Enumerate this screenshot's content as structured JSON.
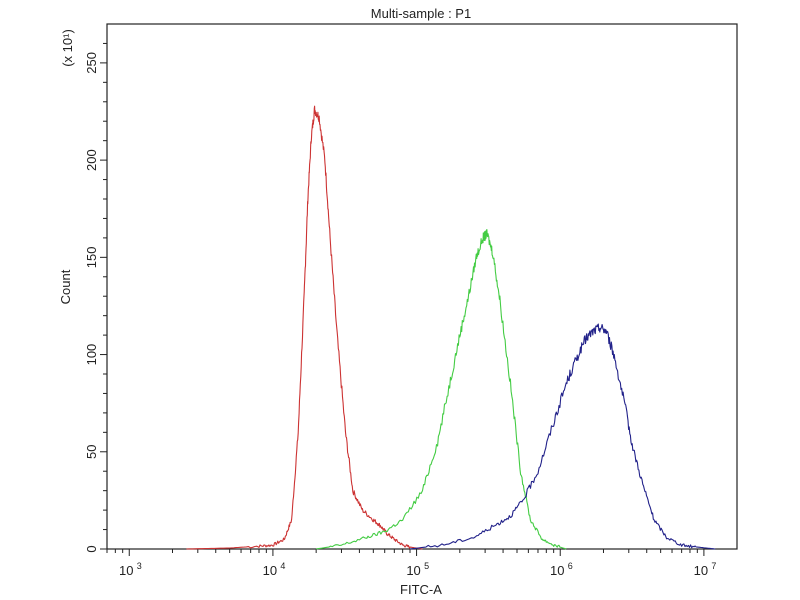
{
  "chart_data": {
    "type": "line",
    "title": "Multi-sample : P1",
    "xlabel": "FITC-A",
    "ylabel": "Count",
    "y_multiplier_label": "(x 10¹)",
    "x_scale": "log",
    "xlim": [
      700,
      17000000
    ],
    "ylim": [
      0,
      270
    ],
    "x_ticks": [
      {
        "value": 1000,
        "base": "10",
        "exp": "3"
      },
      {
        "value": 10000,
        "base": "10",
        "exp": "4"
      },
      {
        "value": 100000,
        "base": "10",
        "exp": "5"
      },
      {
        "value": 1000000,
        "base": "10",
        "exp": "6"
      },
      {
        "value": 10000000,
        "base": "10",
        "exp": "7"
      }
    ],
    "y_ticks": [
      {
        "value": 0,
        "label": "0"
      },
      {
        "value": 50,
        "label": "50"
      },
      {
        "value": 100,
        "label": "100"
      },
      {
        "value": 150,
        "label": "150"
      },
      {
        "value": 200,
        "label": "200"
      },
      {
        "value": 250,
        "label": "250"
      }
    ],
    "grid": false,
    "legend": "none",
    "series": [
      {
        "color": "#cc3333",
        "points": [
          [
            2500,
            0
          ],
          [
            5000,
            0.5
          ],
          [
            8000,
            1.5
          ],
          [
            10000,
            2
          ],
          [
            12000,
            5
          ],
          [
            13500,
            15
          ],
          [
            15000,
            60
          ],
          [
            16500,
            130
          ],
          [
            17500,
            180
          ],
          [
            18500,
            212
          ],
          [
            19500,
            226
          ],
          [
            21000,
            222
          ],
          [
            23000,
            200
          ],
          [
            25000,
            160
          ],
          [
            28000,
            110
          ],
          [
            32000,
            60
          ],
          [
            36000,
            30
          ],
          [
            42000,
            20
          ],
          [
            50000,
            15
          ],
          [
            56000,
            12
          ],
          [
            62000,
            8
          ],
          [
            70000,
            5
          ],
          [
            80000,
            2
          ],
          [
            90000,
            1
          ],
          [
            110000,
            0
          ]
        ]
      },
      {
        "color": "#44cc44",
        "points": [
          [
            20000,
            0
          ],
          [
            30000,
            2
          ],
          [
            45000,
            6
          ],
          [
            60000,
            9
          ],
          [
            80000,
            15
          ],
          [
            110000,
            30
          ],
          [
            140000,
            55
          ],
          [
            170000,
            85
          ],
          [
            200000,
            110
          ],
          [
            230000,
            130
          ],
          [
            260000,
            150
          ],
          [
            290000,
            160
          ],
          [
            310000,
            162
          ],
          [
            340000,
            152
          ],
          [
            380000,
            128
          ],
          [
            450000,
            85
          ],
          [
            530000,
            40
          ],
          [
            620000,
            15
          ],
          [
            750000,
            5
          ],
          [
            900000,
            2
          ],
          [
            1100000,
            0
          ]
        ]
      },
      {
        "color": "#22228a",
        "points": [
          [
            90000,
            0
          ],
          [
            150000,
            2
          ],
          [
            250000,
            6
          ],
          [
            350000,
            12
          ],
          [
            450000,
            17
          ],
          [
            550000,
            25
          ],
          [
            700000,
            40
          ],
          [
            900000,
            65
          ],
          [
            1100000,
            85
          ],
          [
            1300000,
            98
          ],
          [
            1500000,
            108
          ],
          [
            1700000,
            112
          ],
          [
            1900000,
            114
          ],
          [
            2100000,
            112
          ],
          [
            2400000,
            98
          ],
          [
            2800000,
            75
          ],
          [
            3200000,
            52
          ],
          [
            3800000,
            32
          ],
          [
            4500000,
            15
          ],
          [
            5500000,
            6
          ],
          [
            7000000,
            2
          ],
          [
            9000000,
            1
          ],
          [
            12000000,
            0
          ]
        ]
      }
    ]
  }
}
